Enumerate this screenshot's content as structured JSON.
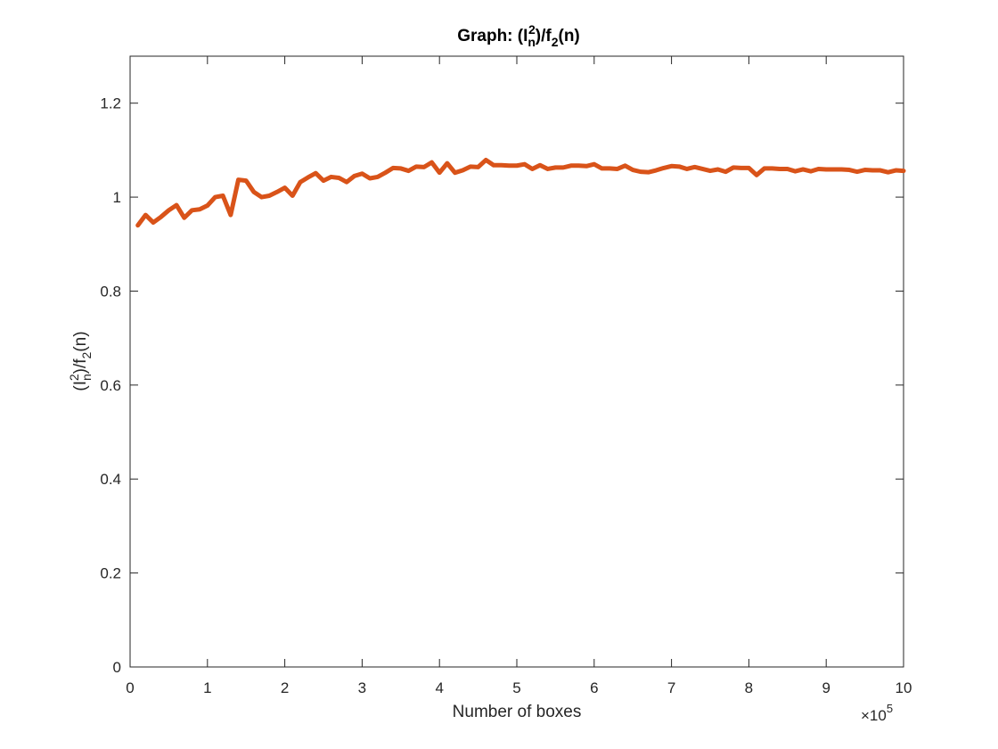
{
  "chart_data": {
    "type": "line",
    "title": {
      "prefix": "Graph: (I",
      "sup": "2",
      "sub": "n",
      "mid": ")/f",
      "sub2": "2",
      "suffix": "(n)"
    },
    "xlabel": "Number of boxes",
    "ylabel": {
      "prefix": "(I",
      "sup": "2",
      "sub": "n",
      "mid": ")/f",
      "sub2": "2",
      "suffix": "(n)"
    },
    "x_multiplier": {
      "times": "×10",
      "exp": "5"
    },
    "xlim": [
      0,
      10
    ],
    "ylim": [
      0,
      1.3
    ],
    "xticks": [
      0,
      1,
      2,
      3,
      4,
      5,
      6,
      7,
      8,
      9,
      10
    ],
    "xtick_labels": [
      "0",
      "1",
      "2",
      "3",
      "4",
      "5",
      "6",
      "7",
      "8",
      "9",
      "10"
    ],
    "yticks": [
      0,
      0.2,
      0.4,
      0.6,
      0.8,
      1,
      1.2
    ],
    "ytick_labels": [
      "0",
      "0.2",
      "0.4",
      "0.6",
      "0.8",
      "1",
      "1.2"
    ],
    "grid": false,
    "colors": {
      "line": "#D95319",
      "axes": "#262626"
    },
    "series": [
      {
        "x": [
          0.1,
          0.2,
          0.3,
          0.4,
          0.5,
          0.6,
          0.7,
          0.8,
          0.9,
          1.0,
          1.1,
          1.2,
          1.3,
          1.4,
          1.5,
          1.6,
          1.7,
          1.8,
          1.9,
          2.0,
          2.1,
          2.2,
          2.3,
          2.4,
          2.5,
          2.6,
          2.7,
          2.8,
          2.9,
          3.0,
          3.1,
          3.2,
          3.3,
          3.4,
          3.5,
          3.6,
          3.7,
          3.8,
          3.9,
          4.0,
          4.1,
          4.2,
          4.3,
          4.4,
          4.5,
          4.6,
          4.7,
          4.8,
          4.9,
          5.0,
          5.1,
          5.2,
          5.3,
          5.4,
          5.5,
          5.6,
          5.7,
          5.8,
          5.9,
          6.0,
          6.1,
          6.2,
          6.3,
          6.4,
          6.5,
          6.6,
          6.7,
          6.8,
          6.9,
          7.0,
          7.1,
          7.2,
          7.3,
          7.4,
          7.5,
          7.6,
          7.7,
          7.8,
          7.9,
          8.0,
          8.1,
          8.2,
          8.3,
          8.4,
          8.5,
          8.6,
          8.7,
          8.8,
          8.9,
          9.0,
          9.1,
          9.2,
          9.3,
          9.4,
          9.5,
          9.6,
          9.7,
          9.8,
          9.9,
          10.0
        ],
        "y": [
          0.94,
          0.962,
          0.946,
          0.958,
          0.972,
          0.983,
          0.956,
          0.972,
          0.974,
          0.982,
          1.0,
          1.003,
          0.962,
          1.037,
          1.035,
          1.011,
          1.0,
          1.003,
          1.011,
          1.02,
          1.003,
          1.032,
          1.042,
          1.051,
          1.035,
          1.043,
          1.041,
          1.032,
          1.045,
          1.05,
          1.04,
          1.043,
          1.052,
          1.062,
          1.061,
          1.056,
          1.065,
          1.064,
          1.074,
          1.052,
          1.072,
          1.052,
          1.057,
          1.065,
          1.064,
          1.079,
          1.068,
          1.068,
          1.067,
          1.067,
          1.07,
          1.06,
          1.068,
          1.06,
          1.063,
          1.063,
          1.067,
          1.067,
          1.066,
          1.07,
          1.061,
          1.061,
          1.06,
          1.067,
          1.058,
          1.054,
          1.053,
          1.057,
          1.062,
          1.066,
          1.065,
          1.06,
          1.064,
          1.06,
          1.056,
          1.059,
          1.054,
          1.063,
          1.062,
          1.062,
          1.047,
          1.061,
          1.061,
          1.06,
          1.06,
          1.055,
          1.059,
          1.055,
          1.06,
          1.059,
          1.059,
          1.059,
          1.058,
          1.054,
          1.058,
          1.057,
          1.057,
          1.053,
          1.057,
          1.056
        ]
      }
    ]
  }
}
